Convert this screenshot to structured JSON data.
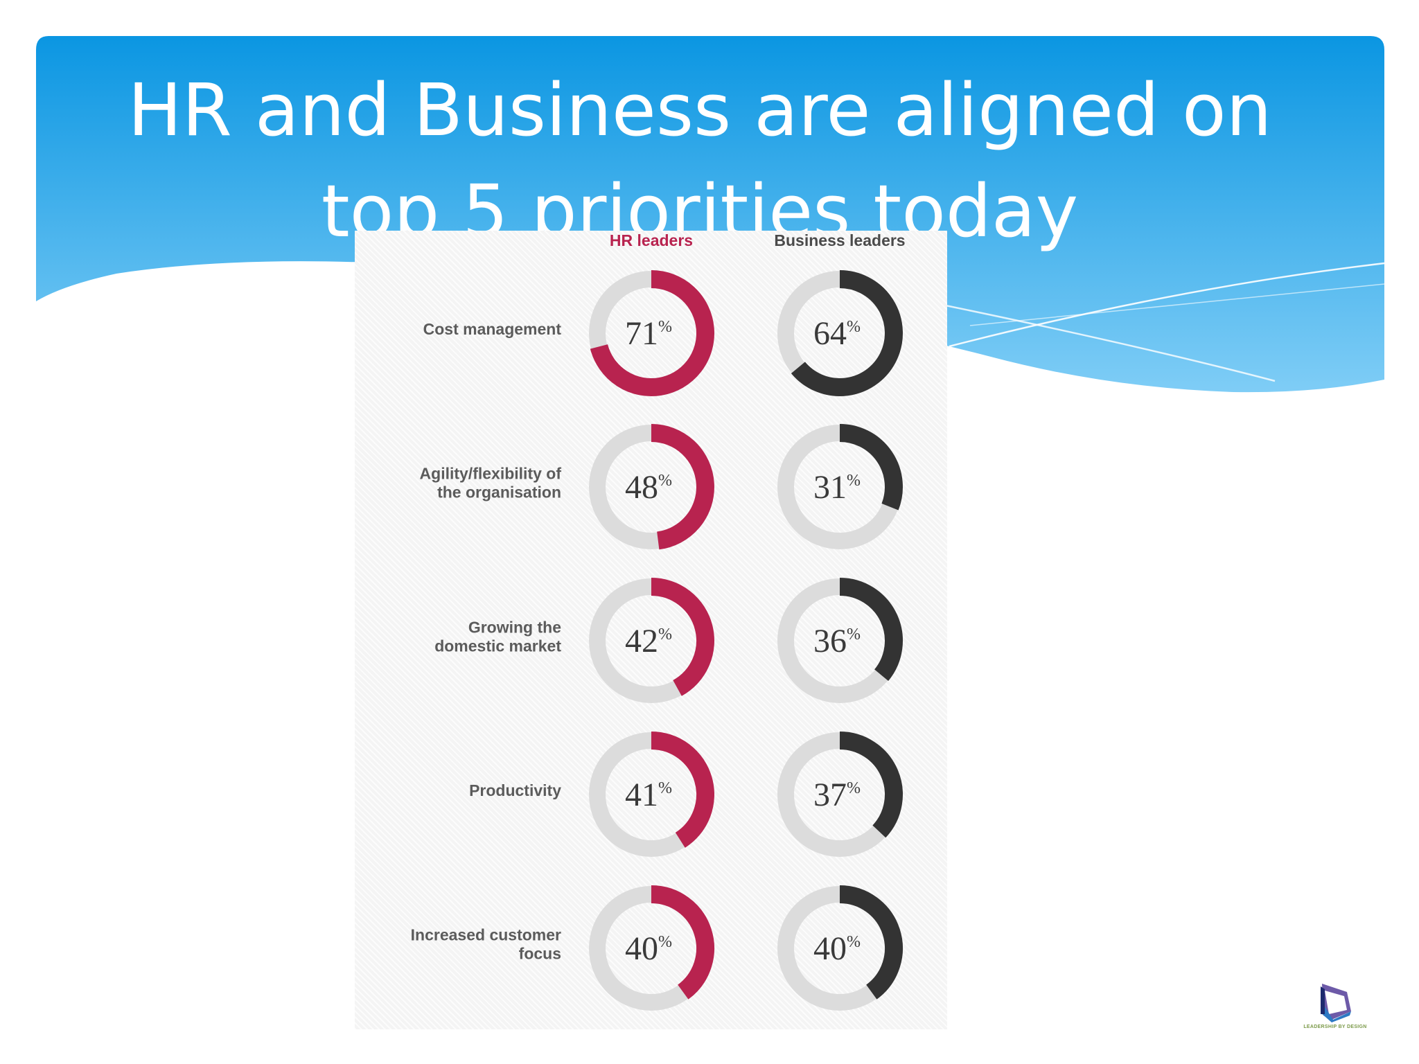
{
  "slide": {
    "title": "HR and Business are aligned on top 5 priorities today"
  },
  "logo": {
    "icon": "leadership-by-design-logo",
    "text": "LEADERSHIP BY DESIGN"
  },
  "colors": {
    "banner_top": "#0b96e2",
    "banner_bottom": "#7fcdf6",
    "hr_series": "#b8234f",
    "business_series": "#333333",
    "ring_track": "#dcdcdc"
  },
  "chart_data": {
    "type": "donut-grid",
    "columns": [
      "HR leaders",
      "Business leaders"
    ],
    "categories": [
      [
        "Cost management"
      ],
      [
        "Agility/flexibility of",
        "the organisation"
      ],
      [
        "Growing the",
        "domestic market"
      ],
      [
        "Productivity"
      ],
      [
        "Increased customer",
        "focus"
      ]
    ],
    "series": [
      {
        "name": "HR leaders",
        "values": [
          71,
          48,
          42,
          41,
          40
        ],
        "color": "#b8234f"
      },
      {
        "name": "Business leaders",
        "values": [
          64,
          31,
          36,
          37,
          40
        ],
        "color": "#333333"
      }
    ],
    "unit": "%",
    "value_max": 100
  }
}
